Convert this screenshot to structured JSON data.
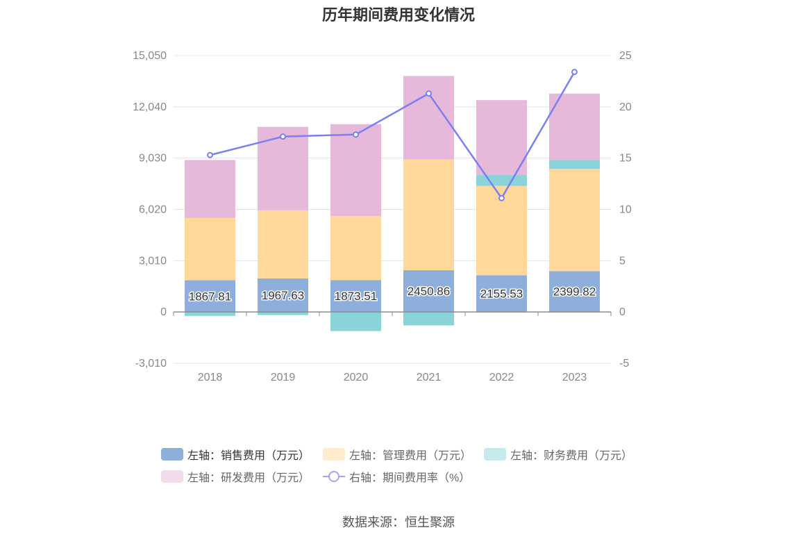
{
  "title": "历年期间费用变化情况",
  "source": "数据来源：恒生聚源",
  "chart_data": {
    "type": "bar",
    "stacked": true,
    "categories": [
      "2018",
      "2019",
      "2020",
      "2021",
      "2022",
      "2023"
    ],
    "left_axis": {
      "ticks": [
        "15,050",
        "12,040",
        "9,030",
        "6,020",
        "3,010",
        "0",
        "-3,010"
      ],
      "ylim": [
        -3010,
        15050
      ]
    },
    "right_axis": {
      "ticks": [
        "25",
        "20",
        "15",
        "10",
        "5",
        "0",
        "-5"
      ],
      "ylim": [
        -5,
        25
      ]
    },
    "series": [
      {
        "name": "左轴：销售费用（万元）",
        "type": "bar",
        "axis": "left",
        "color": "#8eaedb",
        "values": [
          1867.81,
          1967.63,
          1873.51,
          2450.86,
          2155.53,
          2399.82
        ],
        "labels": [
          "1867.81",
          "1967.63",
          "1873.51",
          "2450.86",
          "2155.53",
          "2399.82"
        ]
      },
      {
        "name": "左轴：管理费用（万元）",
        "type": "bar",
        "axis": "left",
        "color": "#ffd89a",
        "values": [
          3650,
          4000,
          3750,
          6500,
          5250,
          6000
        ]
      },
      {
        "name": "左轴：财务费用（万元）",
        "type": "bar",
        "axis": "left",
        "color": "#8ad4d9",
        "values": [
          -230,
          -180,
          -1120,
          -790,
          630,
          520
        ]
      },
      {
        "name": "左轴：研发费用（万元）",
        "type": "bar",
        "axis": "left",
        "color": "#e6b8da",
        "values": [
          3400,
          4900,
          5400,
          4900,
          4400,
          3900
        ]
      },
      {
        "name": "右轴：期间费用率（%）",
        "type": "line",
        "axis": "right",
        "color": "#7b7ff0",
        "values": [
          15.3,
          17.1,
          17.3,
          21.3,
          11.1,
          23.4
        ]
      }
    ],
    "legend_position": "bottom"
  }
}
